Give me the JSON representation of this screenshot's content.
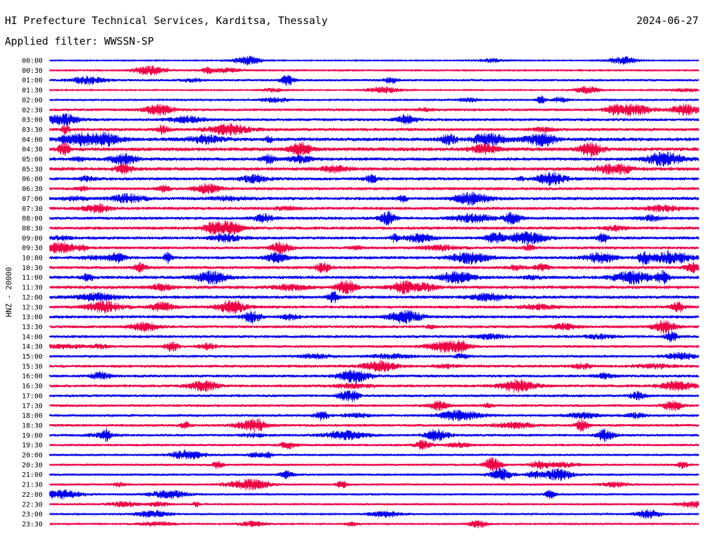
{
  "header": {
    "title": "HI Prefecture Technical Services, Karditsa, Thessaly",
    "date": "2024-06-27",
    "filter_label": "Applied filter: WWSSN-SP",
    "ylabel": "HNZ - 20000"
  },
  "colors": {
    "trace_even": "#0000ee",
    "trace_odd": "#ee0044",
    "background": "#ffffff",
    "text": "#000000"
  },
  "chart_data": {
    "type": "line",
    "title": "HI Prefecture Technical Services, Karditsa, Thessaly",
    "ylabel": "HNZ - 20000",
    "xlabel": "",
    "grid": false,
    "rows": [
      "00:00",
      "00:30",
      "01:00",
      "01:30",
      "02:00",
      "02:30",
      "03:00",
      "03:30",
      "04:00",
      "04:30",
      "05:00",
      "05:30",
      "06:00",
      "06:30",
      "07:00",
      "07:30",
      "08:00",
      "08:30",
      "09:00",
      "09:30",
      "10:00",
      "10:30",
      "11:00",
      "11:30",
      "12:00",
      "12:30",
      "13:00",
      "13:30",
      "14:00",
      "14:30",
      "15:00",
      "15:30",
      "16:00",
      "16:30",
      "17:00",
      "17:30",
      "18:00",
      "18:30",
      "19:00",
      "19:30",
      "20:00",
      "20:30",
      "21:00",
      "21:30",
      "22:00",
      "22:30",
      "23:00",
      "23:30"
    ],
    "noise_level": [
      0.1,
      0.15,
      0.35,
      0.12,
      0.2,
      0.45,
      0.5,
      0.55,
      0.7,
      0.7,
      0.6,
      0.65,
      0.55,
      0.55,
      0.6,
      0.55,
      0.55,
      0.55,
      0.55,
      0.5,
      0.55,
      0.55,
      0.6,
      0.6,
      0.6,
      0.55,
      0.55,
      0.5,
      0.5,
      0.45,
      0.45,
      0.5,
      0.5,
      0.5,
      0.45,
      0.45,
      0.45,
      0.45,
      0.45,
      0.4,
      0.35,
      0.35,
      0.35,
      0.3,
      0.3,
      0.25,
      0.25,
      0.2
    ]
  }
}
